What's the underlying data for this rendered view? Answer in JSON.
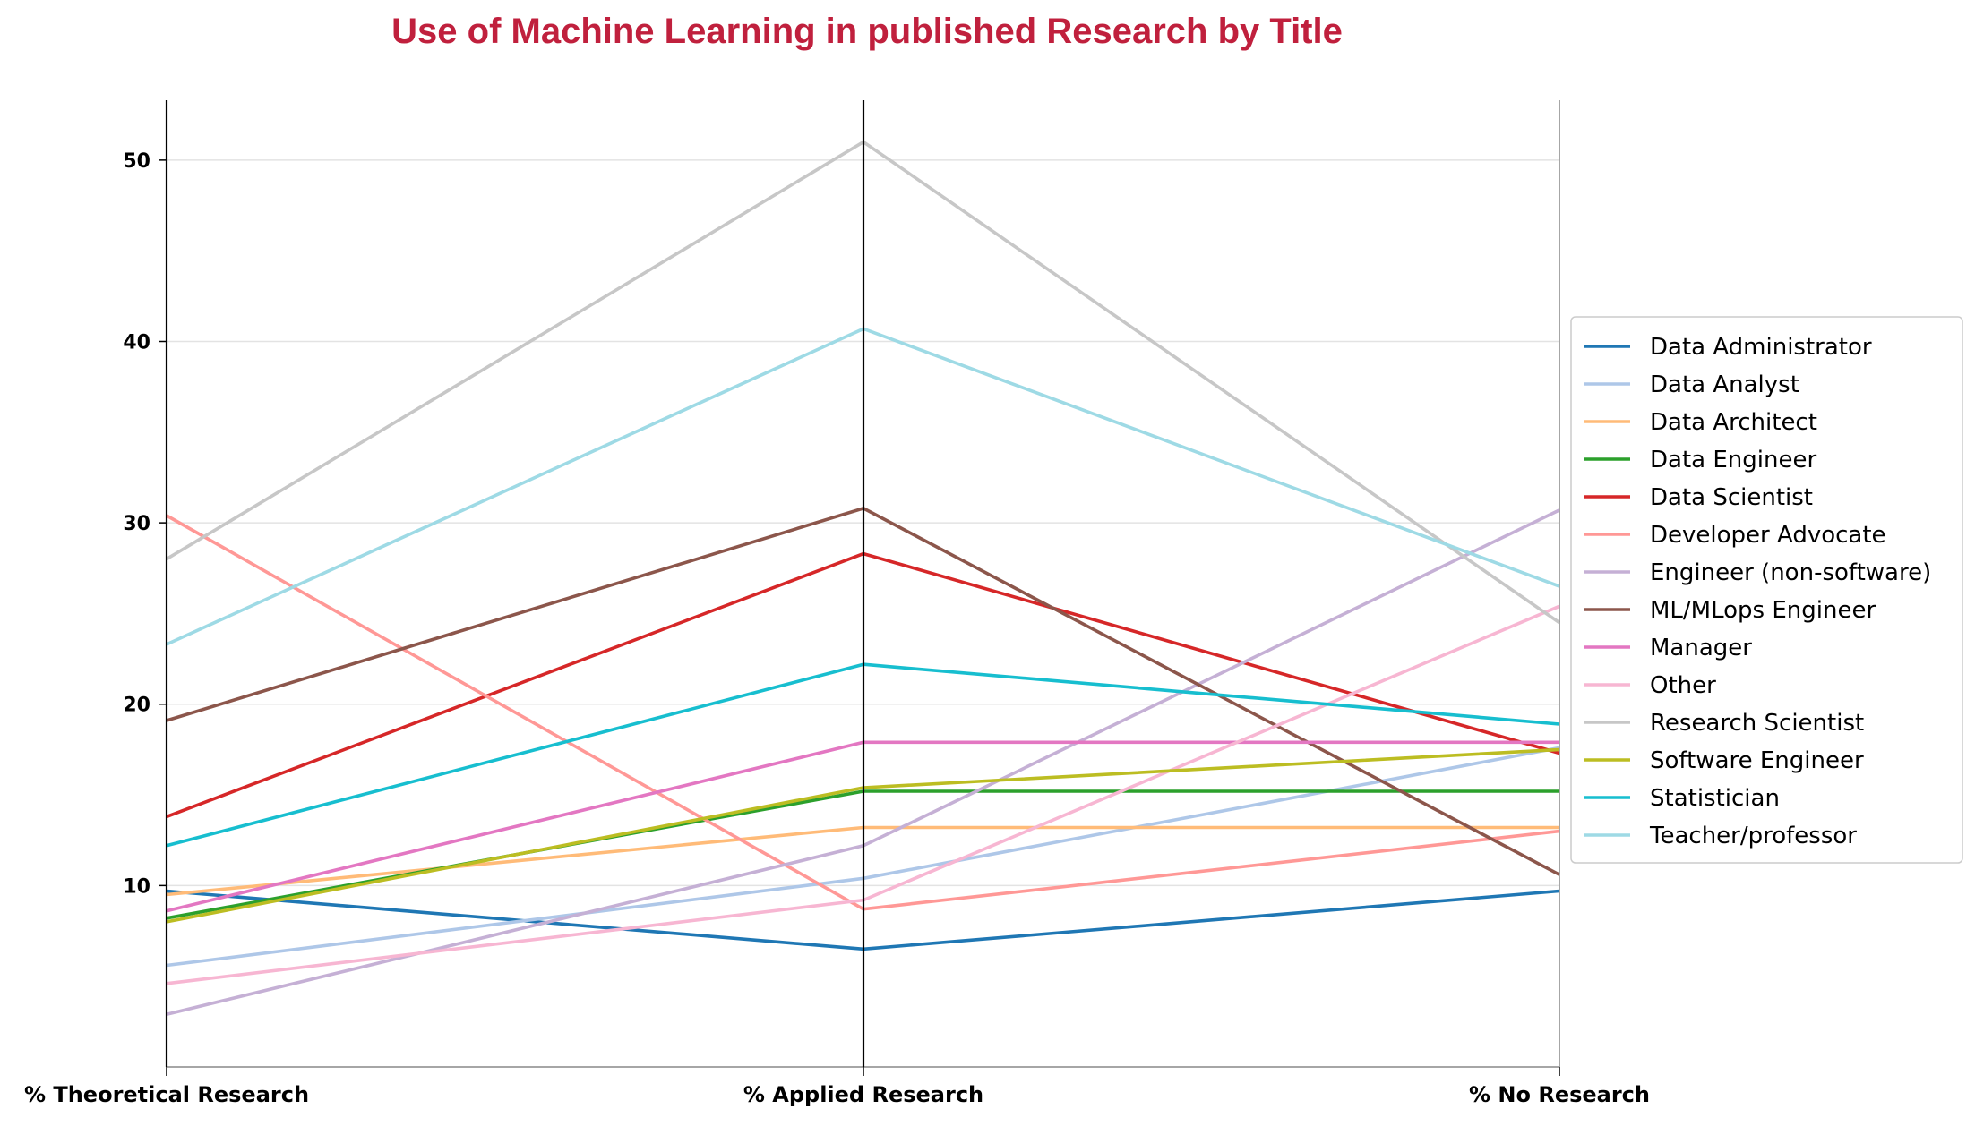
{
  "chart_data": {
    "type": "line",
    "subtype": "parallel-coordinates",
    "title": "Use of Machine Learning in published Research by Title",
    "title_color": "#c0203d",
    "axes": [
      "% Theoretical Research",
      "% Applied Research",
      "% No Research"
    ],
    "yticks": [
      10,
      20,
      30,
      40,
      50
    ],
    "ylim": [
      0,
      53.3
    ],
    "grid": "horizontal",
    "legend_position": "right",
    "series": [
      {
        "name": "Data Administrator",
        "color": "#1f77b4",
        "values": [
          9.7,
          6.5,
          9.7
        ]
      },
      {
        "name": "Data Analyst",
        "color": "#aec7e8",
        "values": [
          5.6,
          10.4,
          17.6
        ]
      },
      {
        "name": "Data Architect",
        "color": "#ffbb78",
        "values": [
          9.5,
          13.2,
          13.2
        ]
      },
      {
        "name": "Data Engineer",
        "color": "#2ca02c",
        "values": [
          8.2,
          15.2,
          15.2
        ]
      },
      {
        "name": "Data Scientist",
        "color": "#d62728",
        "values": [
          13.8,
          28.3,
          17.3
        ]
      },
      {
        "name": "Developer Advocate",
        "color": "#ff9896",
        "values": [
          30.4,
          8.7,
          13.0
        ]
      },
      {
        "name": "Engineer (non-software)",
        "color": "#c5b0d5",
        "values": [
          2.9,
          12.2,
          30.7
        ]
      },
      {
        "name": "ML/MLops Engineer",
        "color": "#8c564b",
        "values": [
          19.1,
          30.8,
          10.6
        ]
      },
      {
        "name": "Manager",
        "color": "#e377c2",
        "values": [
          8.6,
          17.9,
          17.9
        ]
      },
      {
        "name": "Other",
        "color": "#f7b6d2",
        "values": [
          4.6,
          9.2,
          25.4
        ]
      },
      {
        "name": "Research Scientist",
        "color": "#c7c7c7",
        "values": [
          28.0,
          51.0,
          24.5
        ]
      },
      {
        "name": "Software Engineer",
        "color": "#bcbd22",
        "values": [
          8.0,
          15.4,
          17.5
        ]
      },
      {
        "name": "Statistician",
        "color": "#17becf",
        "values": [
          12.2,
          22.2,
          18.9
        ]
      },
      {
        "name": "Teacher/professor",
        "color": "#9edae5",
        "values": [
          23.3,
          40.7,
          26.5
        ]
      }
    ]
  }
}
